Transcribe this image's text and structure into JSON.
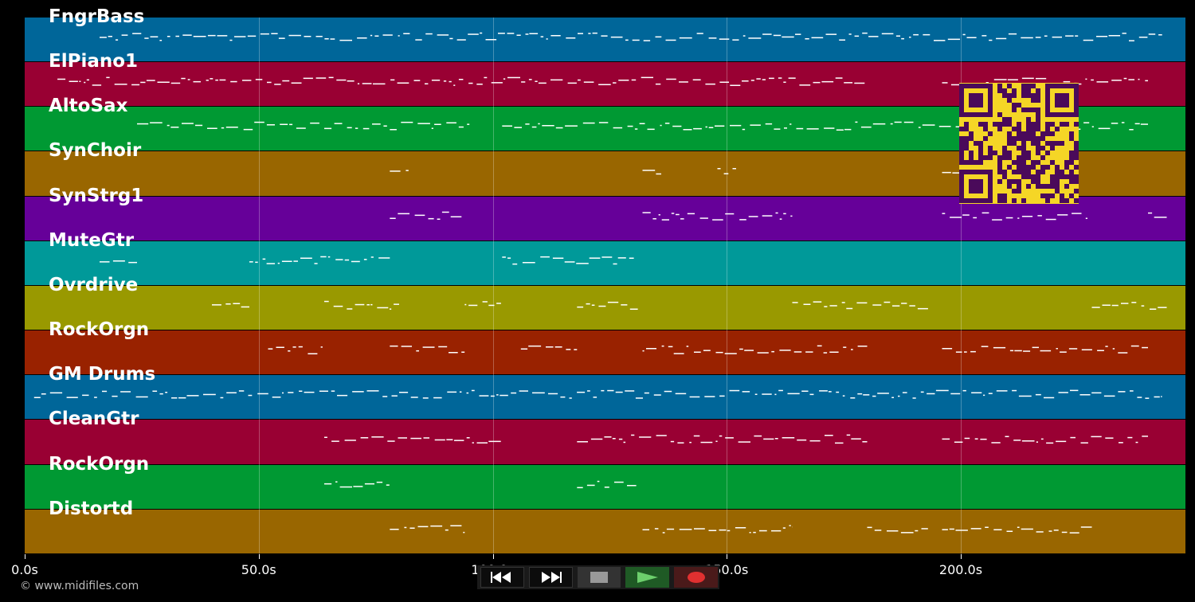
{
  "tracks": [
    {
      "name": "FngrBass",
      "color": "#006699"
    },
    {
      "name": "ElPiano1",
      "color": "#990033"
    },
    {
      "name": "AltoSax",
      "color": "#009933"
    },
    {
      "name": "SynChoir",
      "color": "#996600"
    },
    {
      "name": "SynStrg1",
      "color": "#660099"
    },
    {
      "name": "MuteGtr",
      "color": "#009999"
    },
    {
      "name": "Ovrdrive",
      "color": "#999900"
    },
    {
      "name": "RockOrgn",
      "color": "#992200"
    },
    {
      "name": "GM Drums",
      "color": "#006699"
    },
    {
      "name": "CleanGtr",
      "color": "#990033"
    },
    {
      "name": "RockOrgn",
      "color": "#009933"
    },
    {
      "name": "Distortd",
      "color": "#996600"
    }
  ],
  "timeline": {
    "ticks": [
      {
        "label": "0.0s",
        "seconds": 0
      },
      {
        "label": "50.0s",
        "seconds": 50
      },
      {
        "label": "100.0s",
        "seconds": 100
      },
      {
        "label": "150.0s",
        "seconds": 150
      },
      {
        "label": "200.0s",
        "seconds": 200
      }
    ],
    "max_seconds": 248
  },
  "footer": {
    "copyright": "© www.midifiles.com"
  },
  "transport": {
    "buttons": [
      {
        "name": "rewind-button",
        "icon": "rewind-icon"
      },
      {
        "name": "fast-forward-button",
        "icon": "fast-forward-icon"
      },
      {
        "name": "stop-button",
        "icon": "stop-icon"
      },
      {
        "name": "play-button",
        "icon": "play-icon"
      },
      {
        "name": "record-button",
        "icon": "record-icon"
      }
    ]
  },
  "colors": {
    "background": "#000000",
    "qr_background": "#f5d626",
    "qr_foreground": "#4a0a5a"
  }
}
